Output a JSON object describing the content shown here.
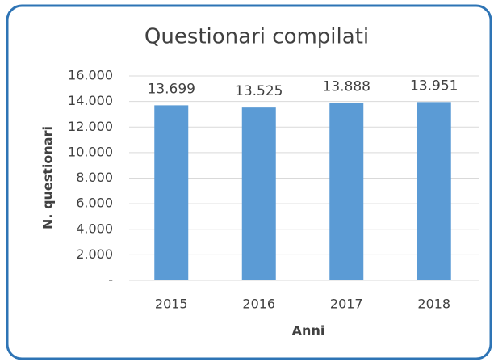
{
  "chart_data": {
    "type": "bar",
    "title": "Questionari compilati",
    "x_label": "Anni",
    "y_label": "N. questionari",
    "categories": [
      "2015",
      "2016",
      "2017",
      "2018"
    ],
    "values": [
      13699,
      13525,
      13888,
      13951
    ],
    "value_labels": [
      "13.699",
      "13.525",
      "13.888",
      "13.951"
    ],
    "color": "#5b9bd5",
    "ylim": [
      0,
      16000
    ],
    "yticks": [
      {
        "value": 0,
        "label": "-"
      },
      {
        "value": 2000,
        "label": "2.000"
      },
      {
        "value": 4000,
        "label": "4.000"
      },
      {
        "value": 6000,
        "label": "6.000"
      },
      {
        "value": 8000,
        "label": "8.000"
      },
      {
        "value": 10000,
        "label": "10.000"
      },
      {
        "value": 12000,
        "label": "12.000"
      },
      {
        "value": 14000,
        "label": "14.000"
      },
      {
        "value": 16000,
        "label": "16.000"
      }
    ],
    "grid": true
  }
}
